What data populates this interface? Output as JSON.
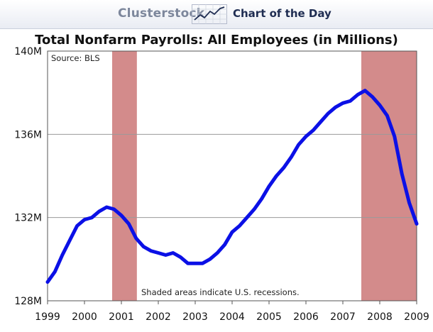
{
  "header": {
    "brand": "Clusterstock",
    "subtitle": "Chart of the Day",
    "logo_icon": "rising-line-chart-icon"
  },
  "chart_data": {
    "type": "line",
    "title": "Total Nonfarm Payrolls: All Employees (in Millions)",
    "source": "Source: BLS",
    "annotation": "Shaded areas indicate U.S. recessions.",
    "xlabel": "",
    "ylabel": "",
    "x_ticks": [
      "1999",
      "2000",
      "2001",
      "2002",
      "2003",
      "2004",
      "2005",
      "2006",
      "2007",
      "2008",
      "2009"
    ],
    "xlim": [
      1999,
      2009
    ],
    "y_ticks": [
      "128M",
      "132M",
      "136M",
      "140M"
    ],
    "ylim": [
      128,
      140
    ],
    "grid": "horizontal",
    "colors": {
      "line": "#0b10e6",
      "recession": "#d38b8b",
      "grid": "#9a9a9a"
    },
    "recessions": [
      {
        "start": 2000.75,
        "end": 2001.42
      },
      {
        "start": 2007.5,
        "end": 2009.0
      }
    ],
    "series": [
      {
        "values_x": [
          1999.0,
          1999.2,
          1999.4,
          1999.6,
          1999.8,
          2000.0,
          2000.2,
          2000.4,
          2000.6,
          2000.8,
          2001.0,
          2001.2,
          2001.4,
          2001.6,
          2001.8,
          2002.0,
          2002.2,
          2002.4,
          2002.6,
          2002.8,
          2003.0,
          2003.2,
          2003.4,
          2003.6,
          2003.8,
          2004.0,
          2004.2,
          2004.4,
          2004.6,
          2004.8,
          2005.0,
          2005.2,
          2005.4,
          2005.6,
          2005.8,
          2006.0,
          2006.2,
          2006.4,
          2006.6,
          2006.8,
          2007.0,
          2007.2,
          2007.4,
          2007.6,
          2007.8,
          2008.0,
          2008.2,
          2008.4,
          2008.6,
          2008.8,
          2009.0
        ],
        "values_y": [
          128.9,
          129.4,
          130.2,
          130.9,
          131.6,
          131.9,
          132.0,
          132.3,
          132.5,
          132.4,
          132.1,
          131.7,
          131.0,
          130.6,
          130.4,
          130.3,
          130.2,
          130.3,
          130.1,
          129.8,
          129.8,
          129.8,
          130.0,
          130.3,
          130.7,
          131.3,
          131.6,
          132.0,
          132.4,
          132.9,
          133.5,
          134.0,
          134.4,
          134.9,
          135.5,
          135.9,
          136.2,
          136.6,
          137.0,
          137.3,
          137.5,
          137.6,
          137.9,
          138.1,
          137.8,
          137.4,
          136.9,
          135.9,
          134.1,
          132.7,
          131.7
        ]
      }
    ]
  }
}
